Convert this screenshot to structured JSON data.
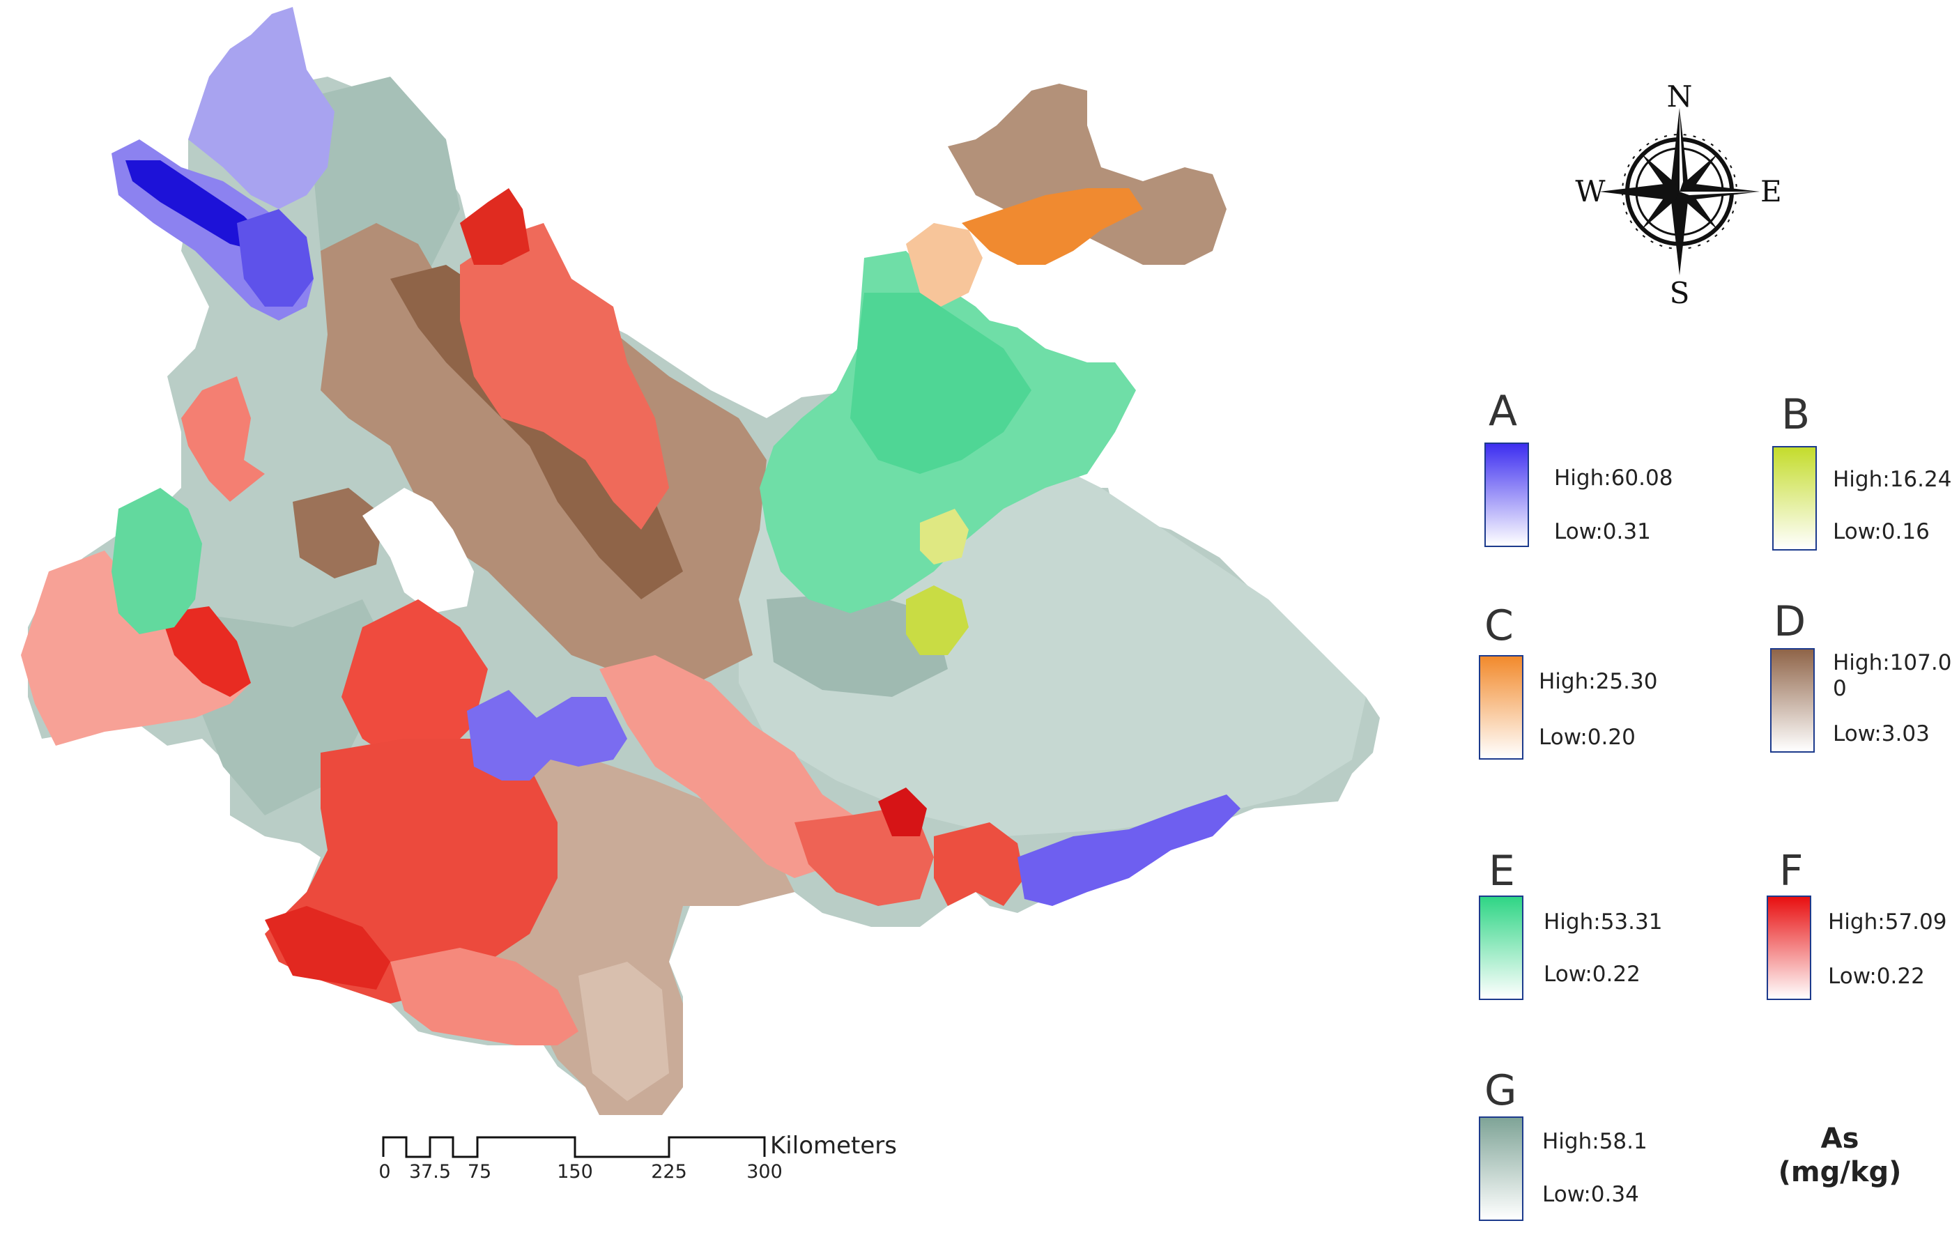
{
  "variable": {
    "name": "As",
    "unit": "(mg/kg)"
  },
  "legend": [
    {
      "letter": "A",
      "high": "High:60.08",
      "low": "Low:0.31",
      "color": "#4b3ef0"
    },
    {
      "letter": "B",
      "high": "High:16.24",
      "low": "Low:0.16",
      "color": "#c9df3c"
    },
    {
      "letter": "C",
      "high": "High:25.30",
      "low": "Low:0.20",
      "color": "#f39036"
    },
    {
      "letter": "D",
      "high": "High:107.00",
      "low": "Low:3.03",
      "color": "#9a6b4f"
    },
    {
      "letter": "E",
      "high": "High:53.31",
      "low": "Low:0.22",
      "color": "#3ed68e"
    },
    {
      "letter": "F",
      "high": "High:57.09",
      "low": "Low:0.22",
      "color": "#ea1c1c"
    },
    {
      "letter": "G",
      "high": "High:58.1",
      "low": "Low:0.34",
      "color": "#8eaea3"
    }
  ],
  "compass": {
    "north": "N",
    "south": "S",
    "east": "E",
    "west": "W"
  },
  "scale_bar": {
    "ticks": [
      "0",
      "37.5",
      "75",
      "150",
      "225",
      "300"
    ],
    "unit": "Kilometers"
  }
}
